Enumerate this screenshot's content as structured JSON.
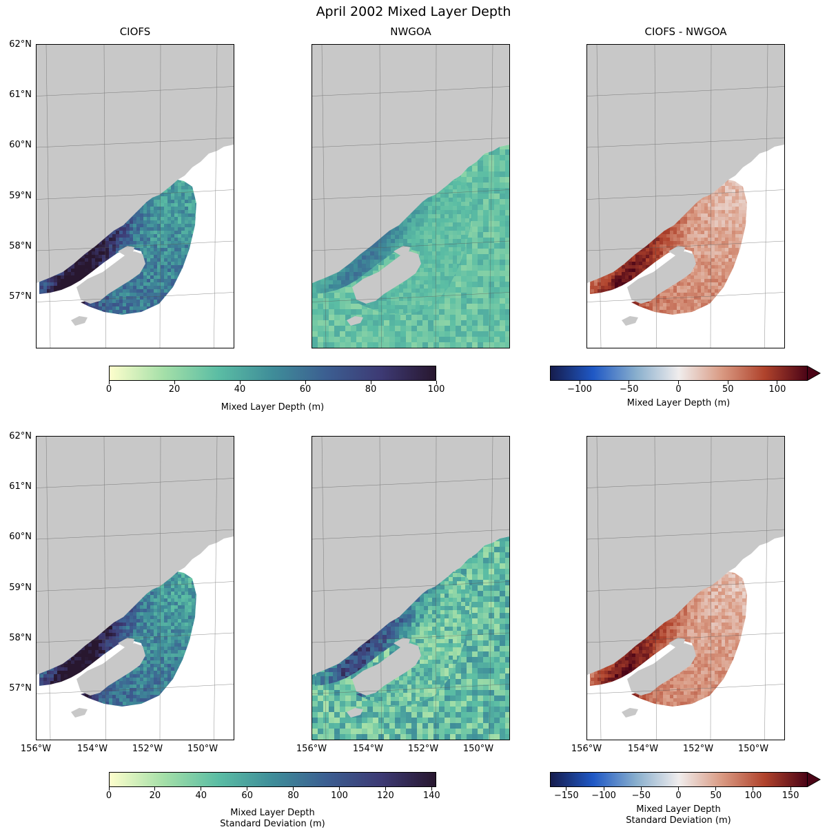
{
  "figure": {
    "title": "April 2002 Mixed Layer Depth",
    "columns": [
      "CIOFS",
      "NWGOA",
      "CIOFS - NWGOA"
    ]
  },
  "axes": {
    "lat_ticks": [
      "62°N",
      "61°N",
      "60°N",
      "59°N",
      "58°N",
      "57°N"
    ],
    "lon_ticks": [
      "156°W",
      "154°W",
      "152°W",
      "150°W"
    ]
  },
  "colorbars": {
    "top_seq": {
      "label": "Mixed Layer Depth (m)",
      "range": [
        0,
        100
      ],
      "ticks": [
        "0",
        "20",
        "40",
        "60",
        "80",
        "100"
      ]
    },
    "top_div": {
      "label": "Mixed Layer Depth (m)",
      "range": [
        -130,
        130
      ],
      "extend": "both",
      "ticks": [
        "−100",
        "−50",
        "0",
        "50",
        "100"
      ]
    },
    "bottom_seq": {
      "label_line1": "Mixed Layer Depth",
      "label_line2": "Standard Deviation (m)",
      "range": [
        0,
        142
      ],
      "ticks": [
        "0",
        "20",
        "40",
        "60",
        "80",
        "100",
        "120",
        "140"
      ]
    },
    "bottom_div": {
      "label_line1": "Mixed Layer Depth",
      "label_line2": "Standard Deviation (m)",
      "range": [
        -172,
        172
      ],
      "extend": "both",
      "ticks": [
        "−150",
        "−100",
        "−50",
        "0",
        "50",
        "100",
        "150"
      ]
    }
  },
  "colors": {
    "land": "#c8c8c8",
    "ocean_outside": "#ffffff",
    "seq_cmap": [
      "#fdfecc",
      "#a4dfa8",
      "#5bbda4",
      "#3f8d99",
      "#3c5e91",
      "#3d3a74",
      "#28172f"
    ],
    "div_cmap": [
      "#161c4c",
      "#1f58c5",
      "#88aecd",
      "#f0eded",
      "#d99a83",
      "#b0432c",
      "#4b0416"
    ]
  }
}
